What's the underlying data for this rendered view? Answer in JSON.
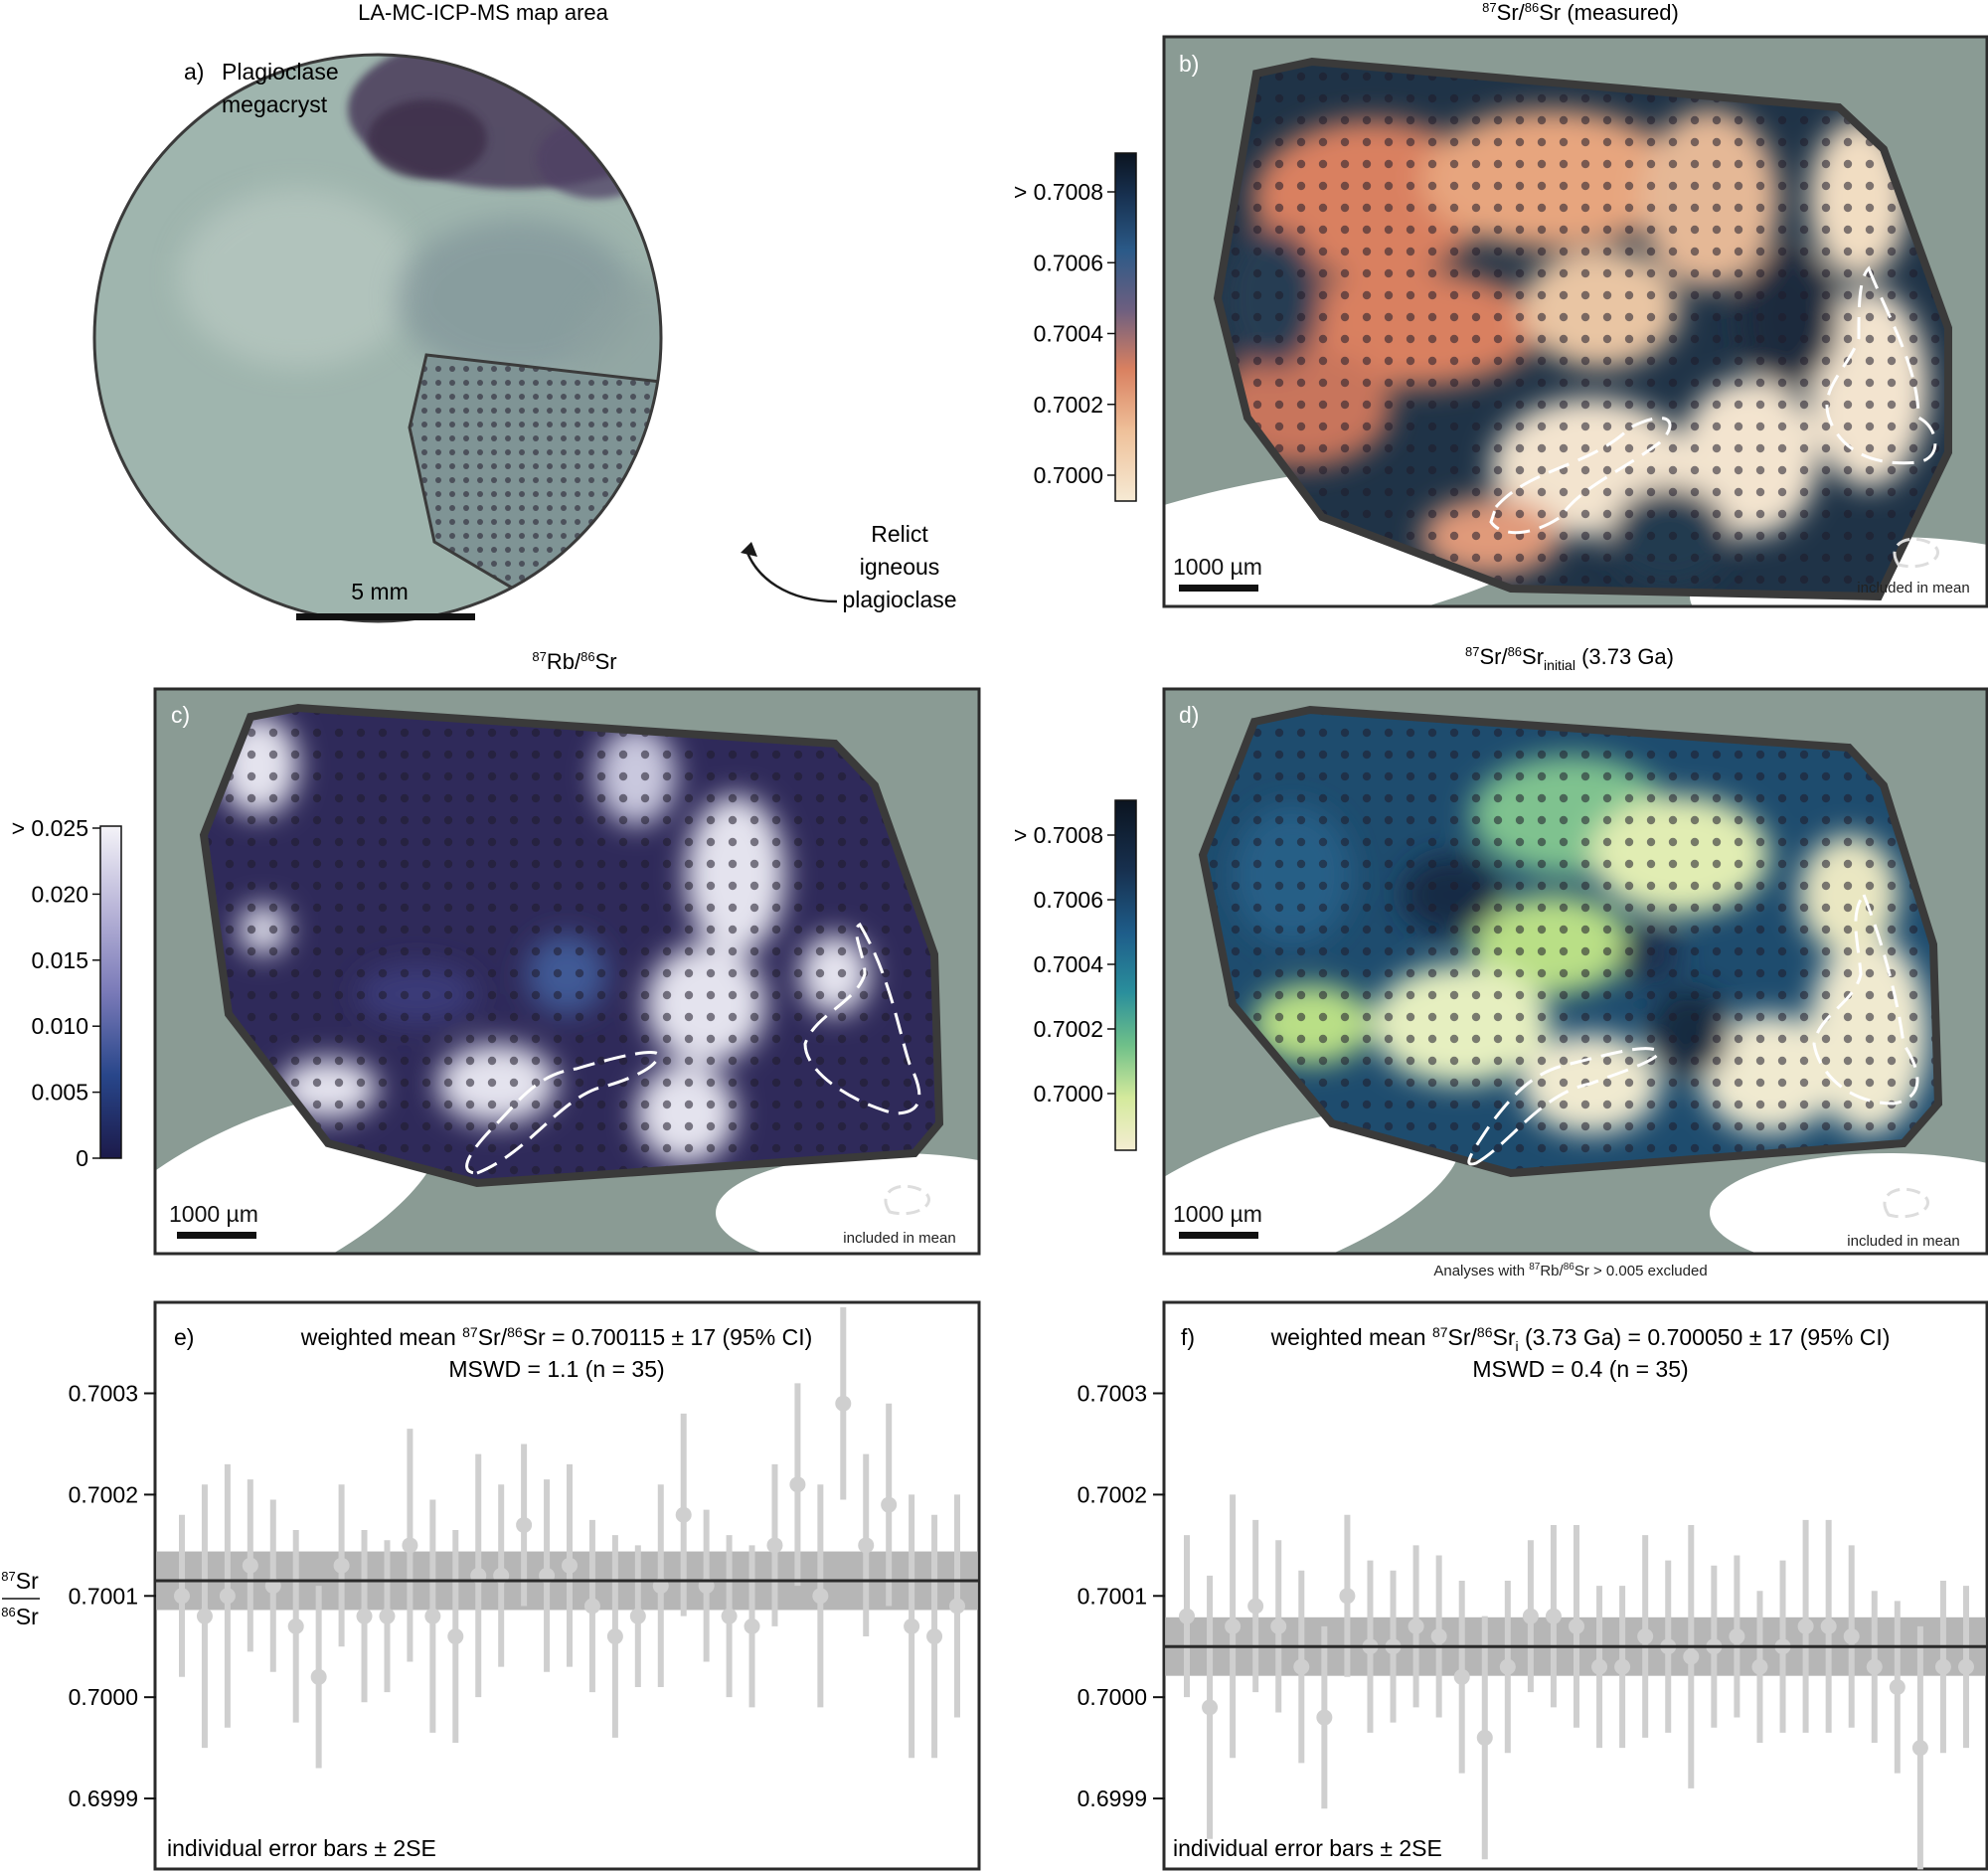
{
  "panel_a": {
    "title": "LA-MC-ICP-MS map area",
    "label": "a)",
    "crystal_label": [
      "Plagioclase",
      "megacryst"
    ],
    "relict_label": [
      "Relict",
      "igneous",
      "plagioclase"
    ],
    "scale_label": "5 mm"
  },
  "panel_b": {
    "title_sup1": "87",
    "title_a": "Sr/",
    "title_sup2": "86",
    "title_b": "Sr (measured)",
    "label": "b)",
    "colorbar_ticks": [
      "> 0.7008",
      "0.7006",
      "0.7004",
      "0.7002",
      "0.7000"
    ],
    "scale_label": "1000 µm",
    "legend_label": "included in mean"
  },
  "panel_c": {
    "title_sup1": "87",
    "title_a": "Rb/",
    "title_sup2": "86",
    "title_b": "Sr",
    "label": "c)",
    "colorbar_ticks": [
      "> 0.025",
      "0.020",
      "0.015",
      "0.010",
      "0.005",
      "0"
    ],
    "scale_label": "1000 µm",
    "legend_label": "included in mean"
  },
  "panel_d": {
    "title_sup1": "87",
    "title_a": "Sr/",
    "title_sup2": "86",
    "title_b": "Sr",
    "title_sub": "initial",
    "title_c": " (3.73 Ga)",
    "label": "d)",
    "colorbar_ticks": [
      "> 0.7008",
      "0.7006",
      "0.7004",
      "0.7002",
      "0.7000"
    ],
    "scale_label": "1000 µm",
    "legend_label": "included in mean",
    "note_a": "Analyses with ",
    "note_sup1": "87",
    "note_b": "Rb/",
    "note_sup2": "86",
    "note_c": "Sr > 0.005 excluded"
  },
  "colors": {
    "map_background": "#8a9b94",
    "outline": "#3a3a3a",
    "rb_dark": "#2e2a5a",
    "rb_light": "#e4e3ee",
    "sr_dark": "#1c2a3c",
    "sr_orange": "#d98060",
    "sr_light": "#f3e4cf",
    "sri_blue": "#1e4c6e",
    "sri_green": "#b9df86",
    "sri_light": "#f0ead0",
    "bar": "#cfcfcf",
    "band": "#a9a9a9"
  },
  "chart_data": [
    {
      "type": "scatter",
      "label": "e)",
      "annotation_a": "weighted mean ",
      "annotation_sup1": "87",
      "annotation_b": "Sr/",
      "annotation_sup2": "86",
      "annotation_c": "Sr = 0.700115 ± 17 (95% CI)",
      "annotation_line2": "MSWD = 1.1 (n = 35)",
      "footer": "individual error bars ± 2SE",
      "ylabel_num": "87Sr",
      "ylabel_den": "86Sr",
      "ylim": [
        0.69985,
        0.70038
      ],
      "yticks": [
        0.7003,
        0.7002,
        0.7001,
        0.7,
        0.6999
      ],
      "ytick_labels": [
        "0.7003",
        "0.7002",
        "0.7001",
        "0.7000",
        "0.6999"
      ],
      "mean": 0.700115,
      "mean_ci": 1.7e-05,
      "n": 35,
      "values": [
        0.7001,
        0.70008,
        0.7001,
        0.70013,
        0.70011,
        0.70007,
        0.70002,
        0.70013,
        0.70008,
        0.70008,
        0.70015,
        0.70008,
        0.70006,
        0.70012,
        0.70012,
        0.70017,
        0.70012,
        0.70013,
        0.70009,
        0.70006,
        0.70008,
        0.70011,
        0.70018,
        0.70011,
        0.70008,
        0.70007,
        0.70015,
        0.70021,
        0.7001,
        0.70029,
        0.70015,
        0.70019,
        0.70007,
        0.70006,
        0.70009
      ],
      "errors": [
        8e-05,
        0.00013,
        0.00013,
        8.5e-05,
        8.5e-05,
        9.5e-05,
        9e-05,
        8e-05,
        8.5e-05,
        7.5e-05,
        0.000115,
        0.000115,
        0.000105,
        0.00012,
        9e-05,
        8e-05,
        9.5e-05,
        0.0001,
        8.5e-05,
        0.0001,
        7e-05,
        0.0001,
        0.0001,
        7.5e-05,
        8e-05,
        8e-05,
        8e-05,
        0.0001,
        0.00011,
        9.5e-05,
        9e-05,
        0.0001,
        0.00013,
        0.00012,
        0.00011
      ]
    },
    {
      "type": "scatter",
      "label": "f)",
      "annotation_a": "weighted mean ",
      "annotation_sup1": "87",
      "annotation_b": "Sr/",
      "annotation_sup2": "86",
      "annotation_c": "Sr",
      "annotation_sub": "i",
      "annotation_d": " (3.73 Ga) = 0.700050 ± 17 (95% CI)",
      "annotation_line2": "MSWD = 0.4 (n = 35)",
      "footer": "individual error bars ± 2SE",
      "ylim": [
        0.69985,
        0.70038
      ],
      "yticks": [
        0.7003,
        0.7002,
        0.7001,
        0.7,
        0.6999
      ],
      "ytick_labels": [
        "0.7003",
        "0.7002",
        "0.7001",
        "0.7000",
        "0.6999"
      ],
      "mean": 0.70005,
      "mean_ci": 1.7e-05,
      "n": 35,
      "values": [
        0.70008,
        0.69999,
        0.70007,
        0.70009,
        0.70007,
        0.70003,
        0.69998,
        0.7001,
        0.70005,
        0.70005,
        0.70007,
        0.70006,
        0.70002,
        0.69996,
        0.70003,
        0.70008,
        0.70008,
        0.70007,
        0.70003,
        0.70003,
        0.70006,
        0.70005,
        0.70004,
        0.70005,
        0.70006,
        0.70003,
        0.70005,
        0.70007,
        0.70007,
        0.70006,
        0.70003,
        0.70001,
        0.69995,
        0.70003,
        0.70003
      ],
      "errors": [
        8e-05,
        0.00013,
        0.00013,
        8.5e-05,
        8.5e-05,
        9.5e-05,
        9e-05,
        8e-05,
        8.5e-05,
        7.5e-05,
        8e-05,
        8e-05,
        9.5e-05,
        0.00012,
        8.5e-05,
        7.5e-05,
        9e-05,
        0.0001,
        8e-05,
        8e-05,
        0.0001,
        8.5e-05,
        0.00013,
        8e-05,
        8e-05,
        7.5e-05,
        8.5e-05,
        0.000105,
        0.000105,
        9e-05,
        7.5e-05,
        8.5e-05,
        0.00012,
        8.5e-05,
        8e-05
      ]
    }
  ]
}
